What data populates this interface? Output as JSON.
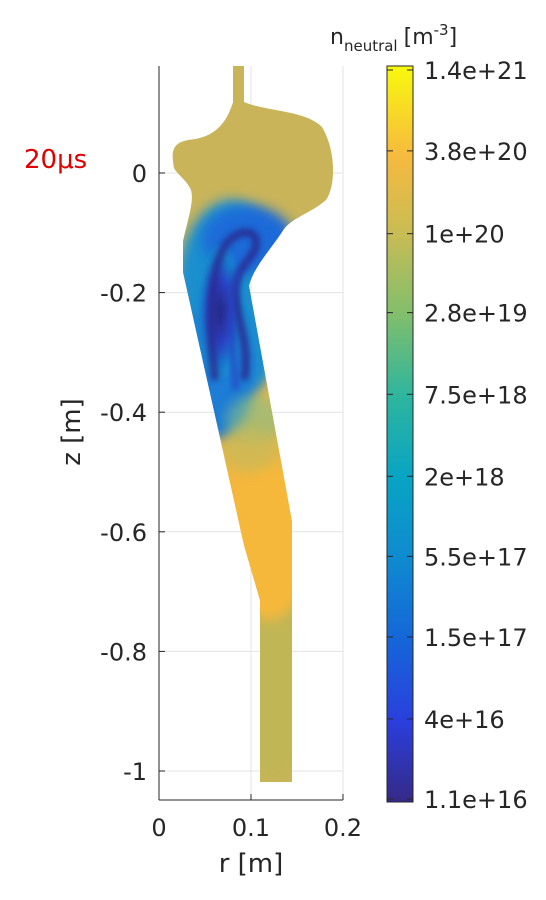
{
  "chart_data": {
    "type": "heatmap",
    "annotation": "20μs",
    "annotation_color": "#e00000",
    "xlabel": "r [m]",
    "ylabel": "z [m]",
    "xlim": [
      0,
      0.2
    ],
    "ylim": [
      -1.05,
      0.18
    ],
    "x_ticks": [
      0,
      0.1,
      0.2
    ],
    "x_tick_labels": [
      "0",
      "0.1",
      "0.2"
    ],
    "y_ticks": [
      0,
      -0.2,
      -0.4,
      -0.6,
      -0.8,
      -1
    ],
    "y_tick_labels": [
      "0",
      "-0.2",
      "-0.4",
      "-0.6",
      "-0.8",
      "-1"
    ],
    "grid": true,
    "colorbar": {
      "title": "n",
      "title_subscript": "neutral",
      "title_unit": "[m",
      "title_unit_sup": "-3",
      "title_unit_close": "]",
      "scale": "log",
      "range": [
        1.1e+16,
        1.4e+21
      ],
      "tick_values": [
        1.4e+21,
        3.8e+20,
        1e+20,
        2.8e+19,
        7.5e+18,
        2e+18,
        5.5e+17,
        1.5e+17,
        4e+16,
        1.1e+16
      ],
      "tick_labels": [
        "1.4e+21",
        "3.8e+20",
        "1e+20",
        "2.8e+19",
        "7.5e+18",
        "2e+18",
        "5.5e+17",
        "1.5e+17",
        "4e+16",
        "1.1e+16"
      ],
      "colormap": "parula"
    },
    "regions": [
      {
        "name": "upper bulb and lower column",
        "approx_value": 1e+20,
        "color": "#c9b45a"
      },
      {
        "name": "depleted channel",
        "approx_value": 1.1e+16,
        "color": "#2b2a8f"
      },
      {
        "name": "mid column",
        "approx_value": 3.8e+20,
        "color": "#f0b43c"
      }
    ]
  }
}
